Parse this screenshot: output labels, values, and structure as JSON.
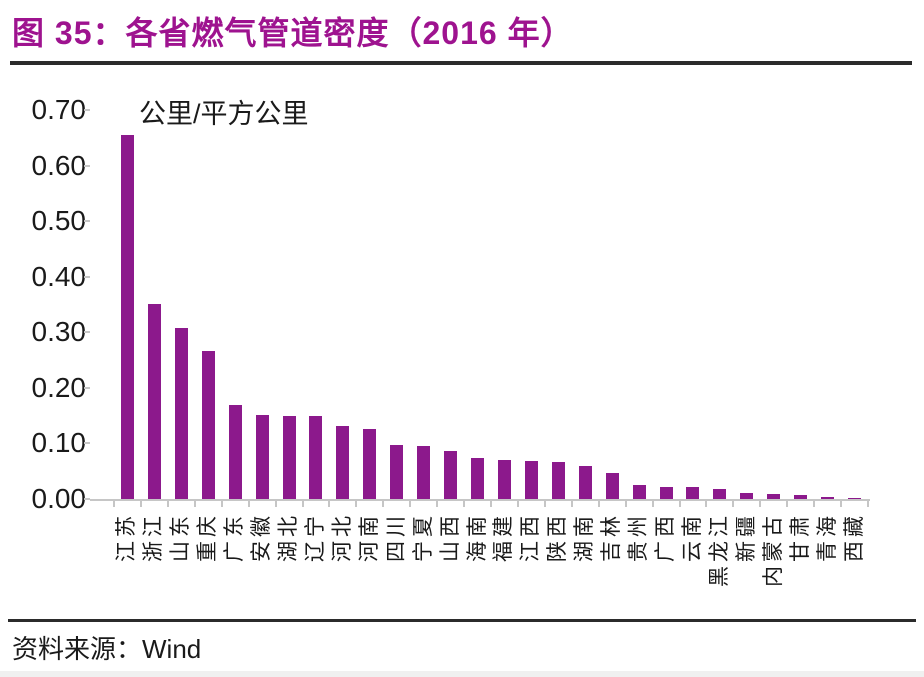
{
  "header": {
    "title": "图 35：各省燃气管道密度（2016 年）"
  },
  "footer": {
    "source_label": "资料来源：",
    "source_value": "Wind"
  },
  "colors": {
    "bar": "#8C198C",
    "title": "#9E138F",
    "axis_line": "#C6C6C6",
    "text": "#1A1A1A"
  },
  "chart_data": {
    "type": "bar",
    "title": "图 35：各省燃气管道密度（2016 年）",
    "unit_label": "公里/平方公里",
    "xlabel": "",
    "ylabel": "公里/平方公里",
    "ylim": [
      0,
      0.7
    ],
    "ytick_step": 0.1,
    "ytick_labels": [
      "0.70",
      "0.60",
      "0.50",
      "0.40",
      "0.30",
      "0.20",
      "0.10",
      "0.00"
    ],
    "grid": false,
    "legend_position": "none",
    "bar_color": "#8C198C",
    "categories": [
      "江苏",
      "浙江",
      "山东",
      "重庆",
      "广东",
      "安徽",
      "湖北",
      "辽宁",
      "河北",
      "河南",
      "四川",
      "宁夏",
      "山西",
      "海南",
      "福建",
      "江西",
      "陕西",
      "湖南",
      "吉林",
      "贵州",
      "广西",
      "云南",
      "黑龙江",
      "新疆",
      "内蒙古",
      "甘肃",
      "青海",
      "西藏"
    ],
    "values": [
      0.655,
      0.35,
      0.307,
      0.266,
      0.17,
      0.152,
      0.15,
      0.149,
      0.131,
      0.126,
      0.097,
      0.096,
      0.087,
      0.073,
      0.071,
      0.069,
      0.067,
      0.059,
      0.047,
      0.026,
      0.021,
      0.021,
      0.018,
      0.011,
      0.009,
      0.008,
      0.004,
      0.001
    ],
    "source": "Wind"
  }
}
